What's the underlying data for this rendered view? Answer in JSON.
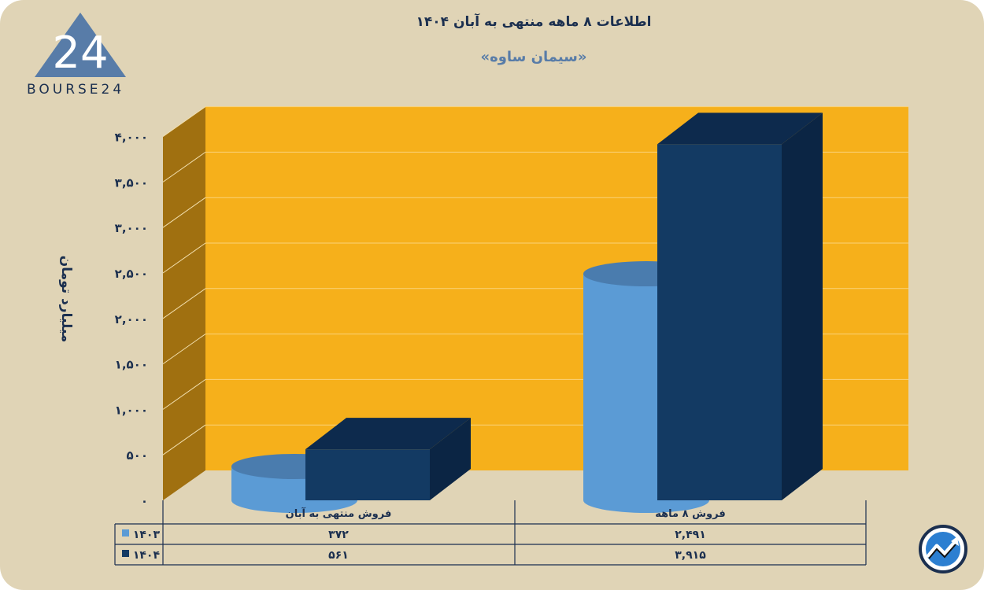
{
  "title": "اطلاعات ۸ ماهه منتهی به آبان ۱۴۰۴",
  "subtitle": "«سیمان ساوه»",
  "brand": {
    "logo_text": "BOURSE24",
    "logo_mark": "24"
  },
  "chart_data": {
    "type": "bar",
    "title": "اطلاعات ۸ ماهه منتهی به آبان ۱۴۰۴",
    "subtitle": "«سیمان ساوه»",
    "ylabel": "میلیارد تومان",
    "ylim": [
      0,
      4000
    ],
    "yticks": [
      0,
      500,
      1000,
      1500,
      2000,
      2500,
      3000,
      3500,
      4000
    ],
    "ytick_labels": [
      "۰",
      "۵۰۰",
      "۱,۰۰۰",
      "۱,۵۰۰",
      "۲,۰۰۰",
      "۲,۵۰۰",
      "۳,۰۰۰",
      "۳,۵۰۰",
      "۴,۰۰۰"
    ],
    "grid": true,
    "categories": [
      "فروش منتهی به  آبان",
      "فروش ۸  ماهه"
    ],
    "series": [
      {
        "name": "۱۴۰۳",
        "values": [
          372,
          2491
        ],
        "labels": [
          "۳۷۲",
          "۲,۴۹۱"
        ],
        "shape": "cylinder",
        "color": "#5b9bd5"
      },
      {
        "name": "۱۴۰۴",
        "values": [
          561,
          3915
        ],
        "labels": [
          "۵۶۱",
          "۳,۹۱۵"
        ],
        "shape": "box",
        "color": "#133a63"
      }
    ],
    "data_table": true,
    "colors": {
      "wall": "#f6b01b",
      "side_wall": "#a07010",
      "background": "#e0d4b6",
      "text": "#1b2f4f"
    }
  }
}
